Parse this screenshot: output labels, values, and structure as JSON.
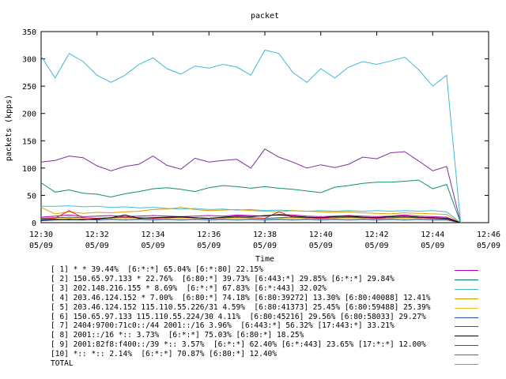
{
  "chart_data": {
    "type": "line",
    "title": "packet",
    "xlabel": "Time",
    "ylabel": "packets (kpps)",
    "ylim": [
      0,
      350
    ],
    "yticks": [
      0,
      50,
      100,
      150,
      200,
      250,
      300,
      350
    ],
    "xlim": [
      "12:30",
      "12:46"
    ],
    "xticks": [
      {
        "time": "12:30",
        "date": "05/09"
      },
      {
        "time": "12:32",
        "date": "05/09"
      },
      {
        "time": "12:34",
        "date": "05/09"
      },
      {
        "time": "12:36",
        "date": "05/09"
      },
      {
        "time": "12:38",
        "date": "05/09"
      },
      {
        "time": "12:40",
        "date": "05/09"
      },
      {
        "time": "12:42",
        "date": "05/09"
      },
      {
        "time": "12:44",
        "date": "05/09"
      },
      {
        "time": "12:46",
        "date": "05/09"
      }
    ],
    "grid": false,
    "legend_position": "bottom",
    "x": [
      "12:30:00",
      "12:30:30",
      "12:31:00",
      "12:31:30",
      "12:32:00",
      "12:32:30",
      "12:33:00",
      "12:33:30",
      "12:34:00",
      "12:34:30",
      "12:35:00",
      "12:35:30",
      "12:36:00",
      "12:36:30",
      "12:37:00",
      "12:37:30",
      "12:38:00",
      "12:38:30",
      "12:39:00",
      "12:39:30",
      "12:40:00",
      "12:40:30",
      "12:41:00",
      "12:41:30",
      "12:42:00",
      "12:42:30",
      "12:43:00",
      "12:43:30",
      "12:44:00",
      "12:44:30",
      "12:45:00"
    ],
    "series": [
      {
        "name": "[ 1] * * 39.44%  [6:*:*] 65.04% [6:*:80] 22.15%",
        "color": "#b000b0",
        "values": [
          10,
          12,
          14,
          11,
          12,
          13,
          11,
          12,
          13,
          12,
          11,
          12,
          13,
          12,
          14,
          13,
          12,
          15,
          14,
          12,
          11,
          12,
          13,
          12,
          11,
          12,
          14,
          12,
          11,
          10,
          0
        ]
      },
      {
        "name": "[ 2] 150.65.97.133 * 22.76%  [6:80:*] 39.73% [6:443:*] 29.85% [6:*:*] 29.84%",
        "color": "#008060",
        "values": [
          8,
          9,
          10,
          9,
          8,
          9,
          10,
          9,
          8,
          9,
          10,
          9,
          8,
          9,
          10,
          9,
          8,
          9,
          10,
          9,
          8,
          9,
          10,
          9,
          8,
          9,
          10,
          9,
          8,
          8,
          0
        ]
      },
      {
        "name": "[ 3] 202.148.216.155 * 8.69%  [6:*:*] 67.83% [6:*:443] 32.02%",
        "color": "#40c0d0",
        "values": [
          30,
          30,
          31,
          29,
          30,
          28,
          29,
          27,
          28,
          26,
          25,
          26,
          24,
          25,
          23,
          24,
          22,
          23,
          22,
          21,
          22,
          21,
          22,
          21,
          22,
          21,
          22,
          21,
          22,
          20,
          0
        ]
      },
      {
        "name": "[ 4] 203.46.124.152 * 7.00%  [6:80:*] 74.18% [6:80:39272] 13.30% [6:80:40088] 12.41%",
        "color": "#e0a000",
        "values": [
          28,
          16,
          20,
          17,
          19,
          18,
          20,
          21,
          24,
          25,
          28,
          24,
          22,
          23,
          24,
          22,
          21,
          20,
          22,
          21,
          20,
          19,
          20,
          18,
          17,
          16,
          18,
          17,
          16,
          15,
          0
        ]
      },
      {
        "name": "[ 5] 203.46.124.152 115.110.55.226/31 4.59%  [6:80:41373] 25.45% [6:80:59488] 25.39%",
        "color": "#f0c020",
        "values": [
          6,
          7,
          8,
          7,
          6,
          7,
          8,
          7,
          6,
          7,
          8,
          7,
          6,
          7,
          8,
          7,
          6,
          7,
          8,
          7,
          6,
          7,
          8,
          7,
          6,
          7,
          8,
          7,
          6,
          6,
          0
        ]
      },
      {
        "name": "[ 6] 150.65.97.133 115.110.55.224/30 4.11%  [6:80:45216] 29.56% [6:80:58033] 29.27%",
        "color": "#2050a0",
        "values": [
          5,
          6,
          5,
          6,
          5,
          6,
          5,
          6,
          5,
          6,
          5,
          6,
          5,
          6,
          5,
          6,
          5,
          6,
          5,
          6,
          5,
          6,
          5,
          6,
          5,
          6,
          5,
          6,
          5,
          5,
          0
        ]
      },
      {
        "name": "[ 7] 2404:9700:71c0::/44 2001::/16 3.96%  [6:443:*] 56.32% [17:443:*] 33.21%",
        "color": "#e02020",
        "values": [
          7,
          8,
          22,
          9,
          8,
          9,
          10,
          9,
          8,
          9,
          10,
          9,
          8,
          9,
          10,
          9,
          8,
          20,
          10,
          9,
          8,
          9,
          10,
          9,
          8,
          9,
          10,
          9,
          8,
          7,
          0
        ]
      },
      {
        "name": "[ 8] 2001::/16 *:: 3.73%  [6:*:*] 75.03% [6:80:*] 18.25%",
        "color": "#000000",
        "values": [
          4,
          5,
          6,
          5,
          7,
          9,
          14,
          8,
          9,
          10,
          11,
          9,
          8,
          10,
          12,
          11,
          13,
          14,
          12,
          10,
          9,
          11,
          12,
          10,
          9,
          11,
          12,
          10,
          9,
          8,
          0
        ]
      },
      {
        "name": "[ 9] 2001:82f8:f400::/39 *:: 3.57%  [6:*:*] 62.40% [6:*:443] 23.65% [17:*:*] 12.00%",
        "color": "#8030a0",
        "values": [
          111,
          114,
          122,
          119,
          104,
          95,
          103,
          107,
          122,
          105,
          98,
          118,
          111,
          114,
          116,
          100,
          135,
          120,
          111,
          100,
          106,
          101,
          107,
          120,
          117,
          128,
          130,
          113,
          95,
          103,
          0
        ]
      },
      {
        "name": "[10] *:: *:: 2.14%  [6:*:*] 70.87% [6:80:*] 12.40%",
        "color": "#109070",
        "values": [
          73,
          56,
          60,
          54,
          52,
          47,
          53,
          57,
          62,
          64,
          61,
          57,
          64,
          68,
          66,
          63,
          66,
          63,
          61,
          58,
          55,
          65,
          68,
          72,
          74,
          74,
          76,
          78,
          62,
          70,
          0
        ]
      },
      {
        "name": "TOTAL",
        "color": "#40b8d8",
        "values": [
          305,
          265,
          310,
          295,
          270,
          257,
          270,
          290,
          302,
          282,
          272,
          287,
          283,
          290,
          285,
          270,
          316,
          310,
          275,
          257,
          282,
          265,
          285,
          295,
          290,
          296,
          303,
          280,
          250,
          270,
          0
        ]
      }
    ]
  }
}
